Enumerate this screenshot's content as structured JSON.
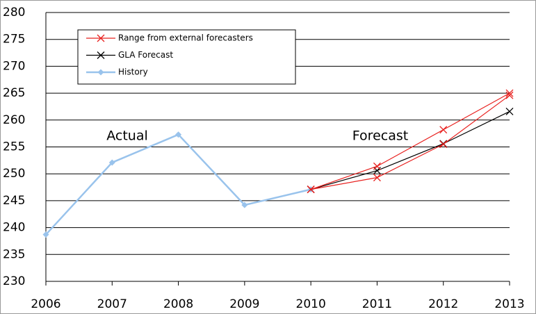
{
  "chart_data": {
    "type": "line",
    "x": [
      2006,
      2007,
      2008,
      2009,
      2010,
      2011,
      2012,
      2013
    ],
    "xlim": [
      2006,
      2013
    ],
    "xticks": [
      2006,
      2007,
      2008,
      2009,
      2010,
      2011,
      2012,
      2013
    ],
    "ylim": [
      230,
      280
    ],
    "yticks": [
      230,
      235,
      240,
      245,
      250,
      255,
      260,
      265,
      270,
      275,
      280
    ],
    "grid": true,
    "annotations": [
      "Actual",
      "Forecast"
    ],
    "series": [
      {
        "name": "Range from external forecasters",
        "color": "#e8201e",
        "marker": "x",
        "values": [
          null,
          null,
          null,
          null,
          247.1,
          251.4,
          258.2,
          265.0
        ]
      },
      {
        "color": "#e8201e",
        "marker": "x",
        "values": [
          null,
          null,
          null,
          null,
          247.1,
          249.3,
          255.5,
          264.6
        ]
      },
      {
        "name": "GLA Forecast",
        "color": "#000000",
        "marker": "x",
        "values": [
          null,
          null,
          null,
          null,
          247.1,
          250.6,
          255.6,
          261.6
        ]
      },
      {
        "name": "History",
        "color": "#99c3ec",
        "marker": "diamond",
        "values": [
          238.7,
          252.1,
          257.3,
          244.2,
          247.1,
          null,
          null,
          null
        ]
      }
    ]
  }
}
